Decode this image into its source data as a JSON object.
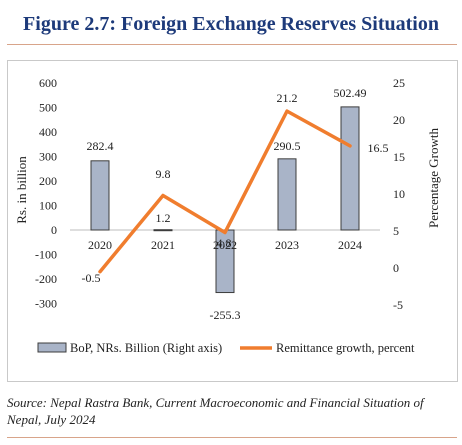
{
  "figure_title": "Figure 2.7: Foreign Exchange Reserves Situation",
  "source_note": "Source: Nepal Rastra Bank, Current Macroeconomic and Financial Situation of Nepal, July 2024",
  "colors": {
    "title": "#1d3a7a",
    "bar_fill": "#a9b4c8",
    "bar_stroke": "#3c3c3c",
    "line": "#f07d2e"
  },
  "chart_data": {
    "type": "bar",
    "categories": [
      "2020",
      "2021",
      "2022",
      "2023",
      "2024"
    ],
    "series": [
      {
        "name": "BoP, NRs. Billion (Right axis)",
        "type": "bar",
        "axis": "left",
        "values": [
          282.4,
          1.2,
          -255.3,
          290.5,
          502.49
        ],
        "labels": [
          "282.4",
          "1.2",
          "-255.3",
          "290.5",
          "502.49"
        ]
      },
      {
        "name": "Remittance growth, percent",
        "type": "line",
        "axis": "right",
        "values": [
          -0.5,
          9.8,
          4.8,
          21.2,
          16.5
        ],
        "labels": [
          "-0.5",
          "9.8",
          "4.8",
          "21.2",
          "16.5"
        ]
      }
    ],
    "ylabel": "Rs. in billion",
    "y2label": "Percentage Growth",
    "ylim": [
      -300,
      600
    ],
    "y2lim": [
      -5,
      25
    ],
    "yticks": [
      "600",
      "500",
      "400",
      "300",
      "200",
      "100",
      "0",
      "-100",
      "-200",
      "-300"
    ],
    "y2ticks": [
      "25",
      "20",
      "15",
      "10",
      "5",
      "0",
      "-5"
    ],
    "legend_position": "bottom",
    "grid": false
  }
}
